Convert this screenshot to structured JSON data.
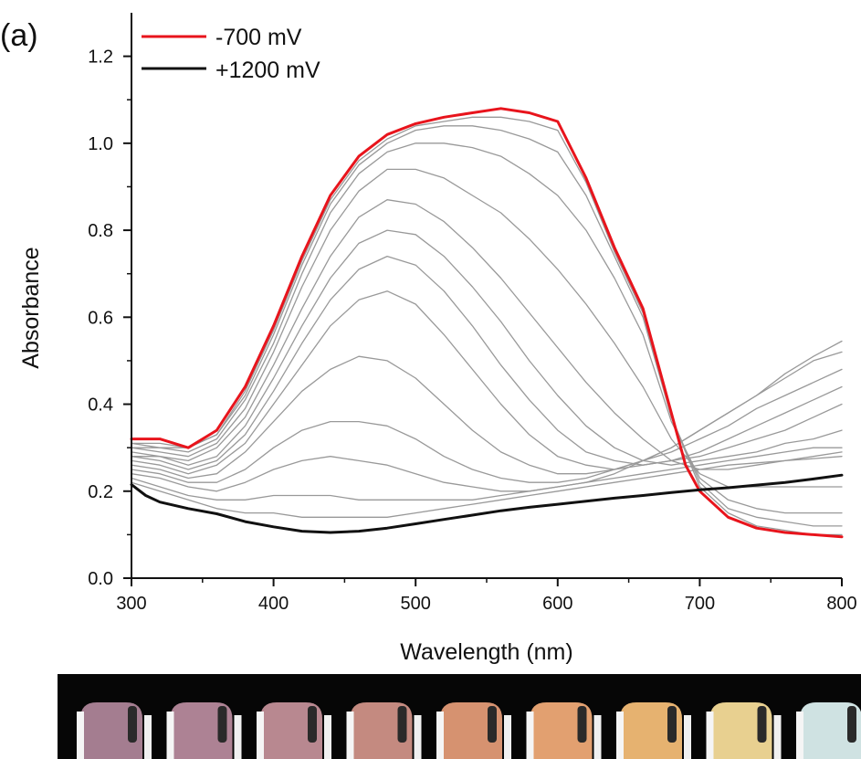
{
  "chart_data": {
    "type": "line",
    "panel_label": "(a)",
    "title": "",
    "xlabel": "Wavelength (nm)",
    "ylabel": "Absorbance",
    "xlim": [
      300,
      800
    ],
    "ylim": [
      0.0,
      1.3
    ],
    "x_ticks": [
      300,
      400,
      500,
      600,
      700,
      800
    ],
    "y_ticks": [
      0.0,
      0.2,
      0.4,
      0.6,
      0.8,
      1.0,
      1.2
    ],
    "x_tick_labels": [
      "300",
      "400",
      "500",
      "600",
      "700",
      "800"
    ],
    "y_tick_labels": [
      "0.0",
      "0.2",
      "0.4",
      "0.6",
      "0.8",
      "1.0",
      "1.2"
    ],
    "grid": false,
    "legend_position": "top-left",
    "legend": [
      {
        "label": "-700 mV",
        "color": "#e8141c"
      },
      {
        "label": "+1200 mV",
        "color": "#111111"
      }
    ],
    "series": [
      {
        "name": "-700 mV",
        "color": "#e8141c",
        "highlight": true,
        "x": [
          300,
          320,
          340,
          360,
          380,
          400,
          420,
          440,
          460,
          480,
          500,
          520,
          540,
          560,
          580,
          600,
          620,
          640,
          660,
          670,
          680,
          690,
          700,
          720,
          740,
          760,
          780,
          800
        ],
        "y": [
          0.32,
          0.32,
          0.3,
          0.34,
          0.44,
          0.58,
          0.74,
          0.88,
          0.97,
          1.02,
          1.045,
          1.06,
          1.07,
          1.08,
          1.07,
          1.05,
          0.92,
          0.76,
          0.62,
          0.5,
          0.38,
          0.26,
          0.2,
          0.14,
          0.115,
          0.105,
          0.1,
          0.095
        ]
      },
      {
        "color": "#999999",
        "x": [
          300,
          320,
          340,
          360,
          380,
          400,
          420,
          440,
          460,
          480,
          500,
          520,
          540,
          560,
          580,
          600,
          620,
          640,
          660,
          680,
          700,
          720,
          740,
          760,
          780,
          800
        ],
        "y": [
          0.31,
          0.31,
          0.3,
          0.33,
          0.43,
          0.57,
          0.73,
          0.87,
          0.96,
          1.01,
          1.04,
          1.05,
          1.06,
          1.06,
          1.05,
          1.03,
          0.91,
          0.75,
          0.61,
          0.37,
          0.21,
          0.15,
          0.12,
          0.11,
          0.1,
          0.1
        ]
      },
      {
        "color": "#999999",
        "x": [
          300,
          320,
          340,
          360,
          380,
          400,
          420,
          440,
          460,
          480,
          500,
          520,
          540,
          560,
          580,
          600,
          620,
          640,
          660,
          680,
          700,
          720,
          740,
          760,
          780,
          800
        ],
        "y": [
          0.31,
          0.3,
          0.3,
          0.33,
          0.42,
          0.56,
          0.72,
          0.86,
          0.95,
          1.0,
          1.03,
          1.04,
          1.04,
          1.03,
          1.01,
          0.98,
          0.88,
          0.74,
          0.6,
          0.37,
          0.22,
          0.16,
          0.14,
          0.13,
          0.12,
          0.12
        ]
      },
      {
        "color": "#999999",
        "x": [
          300,
          320,
          340,
          360,
          380,
          400,
          420,
          440,
          460,
          480,
          500,
          520,
          540,
          560,
          580,
          600,
          620,
          640,
          660,
          680,
          700,
          720,
          740,
          760,
          780,
          800
        ],
        "y": [
          0.3,
          0.3,
          0.29,
          0.32,
          0.41,
          0.54,
          0.7,
          0.84,
          0.93,
          0.98,
          1.0,
          1.0,
          0.99,
          0.97,
          0.93,
          0.88,
          0.8,
          0.69,
          0.56,
          0.36,
          0.23,
          0.18,
          0.16,
          0.15,
          0.15,
          0.15
        ]
      },
      {
        "color": "#999999",
        "x": [
          300,
          320,
          340,
          360,
          380,
          400,
          420,
          440,
          460,
          480,
          500,
          520,
          540,
          560,
          580,
          600,
          620,
          640,
          660,
          680,
          700,
          720,
          740,
          760,
          780,
          800
        ],
        "y": [
          0.3,
          0.29,
          0.28,
          0.31,
          0.39,
          0.52,
          0.67,
          0.8,
          0.89,
          0.94,
          0.94,
          0.92,
          0.88,
          0.84,
          0.78,
          0.71,
          0.63,
          0.54,
          0.44,
          0.32,
          0.24,
          0.21,
          0.21,
          0.21,
          0.21,
          0.21
        ]
      },
      {
        "color": "#999999",
        "x": [
          300,
          320,
          340,
          360,
          380,
          400,
          420,
          440,
          460,
          480,
          500,
          520,
          540,
          560,
          580,
          600,
          620,
          640,
          660,
          680,
          700,
          720,
          740,
          760,
          780,
          800
        ],
        "y": [
          0.29,
          0.28,
          0.27,
          0.3,
          0.37,
          0.49,
          0.62,
          0.74,
          0.83,
          0.87,
          0.86,
          0.82,
          0.76,
          0.69,
          0.61,
          0.53,
          0.45,
          0.38,
          0.32,
          0.27,
          0.25,
          0.25,
          0.26,
          0.27,
          0.28,
          0.29
        ]
      },
      {
        "color": "#999999",
        "x": [
          300,
          320,
          340,
          360,
          380,
          400,
          420,
          440,
          460,
          480,
          500,
          520,
          540,
          560,
          580,
          600,
          620,
          640,
          660,
          680,
          700,
          720,
          740,
          760,
          780,
          800
        ],
        "y": [
          0.28,
          0.28,
          0.26,
          0.28,
          0.35,
          0.46,
          0.58,
          0.69,
          0.77,
          0.8,
          0.79,
          0.74,
          0.67,
          0.59,
          0.5,
          0.42,
          0.35,
          0.3,
          0.27,
          0.26,
          0.27,
          0.28,
          0.29,
          0.31,
          0.32,
          0.34
        ]
      },
      {
        "color": "#999999",
        "x": [
          300,
          320,
          340,
          360,
          380,
          400,
          420,
          440,
          460,
          480,
          500,
          520,
          540,
          560,
          580,
          600,
          620,
          640,
          660,
          680,
          700,
          720,
          740,
          760,
          780,
          800
        ],
        "y": [
          0.28,
          0.27,
          0.25,
          0.27,
          0.33,
          0.43,
          0.54,
          0.64,
          0.71,
          0.74,
          0.72,
          0.66,
          0.58,
          0.49,
          0.41,
          0.34,
          0.29,
          0.27,
          0.26,
          0.27,
          0.28,
          0.3,
          0.32,
          0.34,
          0.37,
          0.4
        ]
      },
      {
        "color": "#999999",
        "x": [
          300,
          320,
          340,
          360,
          380,
          400,
          420,
          440,
          460,
          480,
          500,
          520,
          540,
          560,
          580,
          600,
          620,
          640,
          660,
          680,
          700,
          720,
          740,
          760,
          780,
          800
        ],
        "y": [
          0.27,
          0.26,
          0.24,
          0.26,
          0.31,
          0.4,
          0.49,
          0.58,
          0.64,
          0.66,
          0.63,
          0.56,
          0.48,
          0.4,
          0.33,
          0.28,
          0.26,
          0.25,
          0.26,
          0.27,
          0.29,
          0.32,
          0.35,
          0.38,
          0.41,
          0.44
        ]
      },
      {
        "color": "#999999",
        "x": [
          300,
          320,
          340,
          360,
          380,
          400,
          420,
          440,
          460,
          480,
          500,
          520,
          540,
          560,
          580,
          600,
          620,
          640,
          660,
          680,
          700,
          720,
          740,
          760,
          780,
          800
        ],
        "y": [
          0.26,
          0.25,
          0.23,
          0.24,
          0.29,
          0.36,
          0.43,
          0.48,
          0.51,
          0.5,
          0.46,
          0.4,
          0.34,
          0.29,
          0.26,
          0.24,
          0.24,
          0.25,
          0.27,
          0.29,
          0.32,
          0.35,
          0.39,
          0.42,
          0.45,
          0.48
        ]
      },
      {
        "color": "#999999",
        "x": [
          300,
          320,
          340,
          360,
          380,
          400,
          420,
          440,
          460,
          480,
          500,
          520,
          540,
          560,
          580,
          600,
          620,
          640,
          660,
          680,
          700,
          720,
          740,
          760,
          780,
          800
        ],
        "y": [
          0.25,
          0.24,
          0.22,
          0.22,
          0.25,
          0.3,
          0.34,
          0.36,
          0.36,
          0.35,
          0.32,
          0.28,
          0.25,
          0.23,
          0.22,
          0.22,
          0.23,
          0.25,
          0.27,
          0.3,
          0.34,
          0.38,
          0.42,
          0.46,
          0.5,
          0.52
        ]
      },
      {
        "color": "#999999",
        "x": [
          300,
          320,
          340,
          360,
          380,
          400,
          420,
          440,
          460,
          480,
          500,
          520,
          540,
          560,
          580,
          600,
          620,
          640,
          660,
          680,
          700,
          720,
          740,
          760,
          780,
          800
        ],
        "y": [
          0.24,
          0.23,
          0.21,
          0.2,
          0.22,
          0.25,
          0.27,
          0.28,
          0.27,
          0.26,
          0.24,
          0.22,
          0.21,
          0.2,
          0.2,
          0.21,
          0.22,
          0.24,
          0.27,
          0.3,
          0.34,
          0.38,
          0.42,
          0.47,
          0.51,
          0.545
        ]
      },
      {
        "color": "#999999",
        "x": [
          300,
          320,
          340,
          360,
          380,
          400,
          420,
          440,
          460,
          480,
          500,
          520,
          540,
          560,
          580,
          600,
          620,
          640,
          660,
          680,
          700,
          720,
          740,
          760,
          780,
          800
        ],
        "y": [
          0.23,
          0.21,
          0.19,
          0.18,
          0.18,
          0.19,
          0.19,
          0.19,
          0.18,
          0.18,
          0.18,
          0.18,
          0.18,
          0.19,
          0.2,
          0.21,
          0.22,
          0.23,
          0.24,
          0.25,
          0.26,
          0.27,
          0.28,
          0.29,
          0.3,
          0.3
        ]
      },
      {
        "color": "#999999",
        "x": [
          300,
          320,
          340,
          360,
          380,
          400,
          420,
          440,
          460,
          480,
          500,
          520,
          540,
          560,
          580,
          600,
          620,
          640,
          660,
          680,
          700,
          720,
          740,
          760,
          780,
          800
        ],
        "y": [
          0.22,
          0.2,
          0.18,
          0.16,
          0.15,
          0.15,
          0.14,
          0.14,
          0.14,
          0.14,
          0.15,
          0.16,
          0.17,
          0.18,
          0.19,
          0.2,
          0.21,
          0.22,
          0.23,
          0.24,
          0.25,
          0.26,
          0.265,
          0.27,
          0.275,
          0.28
        ]
      },
      {
        "name": "+1200 mV",
        "color": "#111111",
        "highlight": true,
        "x": [
          300,
          310,
          320,
          340,
          360,
          380,
          400,
          420,
          440,
          460,
          480,
          500,
          520,
          540,
          560,
          580,
          600,
          620,
          640,
          660,
          680,
          700,
          720,
          740,
          760,
          780,
          800
        ],
        "y": [
          0.215,
          0.19,
          0.175,
          0.16,
          0.148,
          0.13,
          0.118,
          0.108,
          0.105,
          0.108,
          0.115,
          0.125,
          0.135,
          0.145,
          0.155,
          0.163,
          0.17,
          0.177,
          0.184,
          0.19,
          0.197,
          0.203,
          0.208,
          0.214,
          0.22,
          0.228,
          0.237
        ]
      }
    ]
  },
  "photo_strip": {
    "vial_colors": [
      "#a47d90",
      "#ad8294",
      "#b88890",
      "#c48a80",
      "#d69270",
      "#e2a070",
      "#e6b270",
      "#e8d090",
      "#cfe2e2"
    ]
  }
}
